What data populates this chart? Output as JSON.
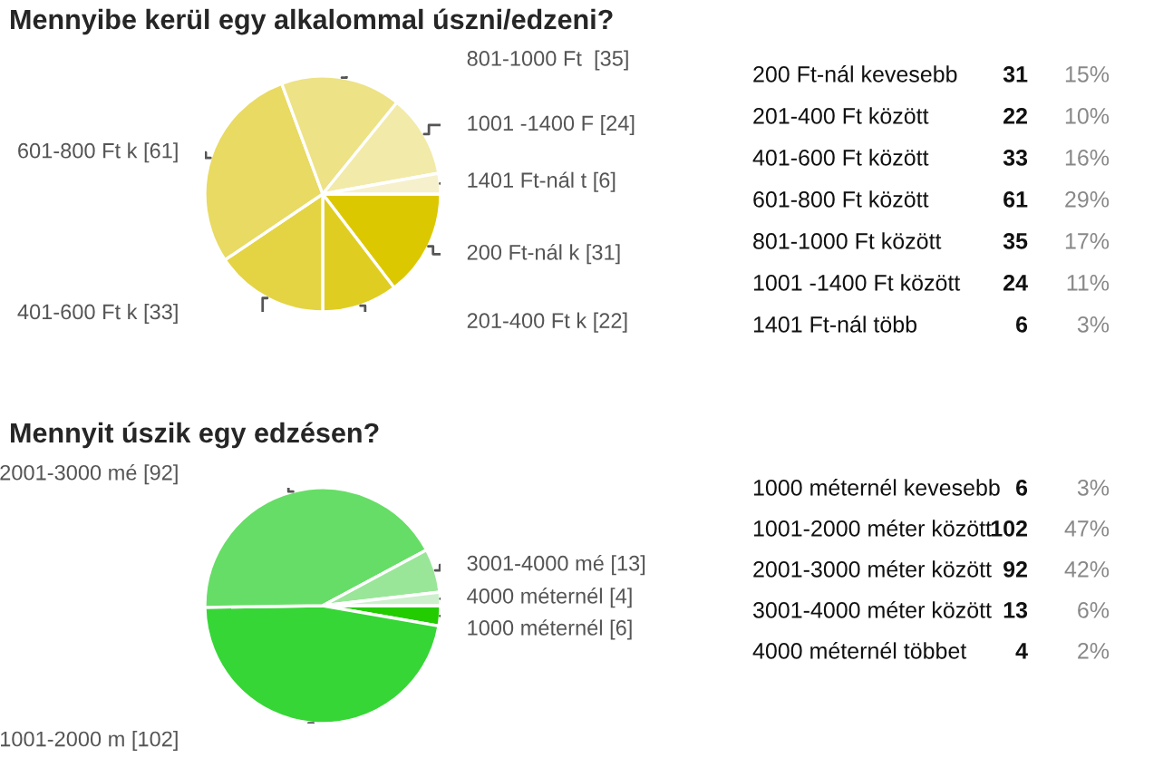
{
  "chart_data": [
    {
      "type": "pie",
      "title": "Mennyibe kerül egy alkalommal úszni/edzeni?",
      "categories": [
        "200 Ft-nál k",
        "201-400 Ft k",
        "401-600 Ft k",
        "601-800 Ft k",
        "801-1000 Ft ",
        "1001 -1400 F",
        "1401 Ft-nál t"
      ],
      "values": [
        31,
        22,
        33,
        61,
        35,
        24,
        6
      ],
      "colors": [
        "#dcc800",
        "#e0cd22",
        "#e4d444",
        "#e8da62",
        "#ede285",
        "#f2eaa8",
        "#f6f1cc"
      ],
      "value_labels": [
        "[31]",
        "[22]",
        "[33]",
        "[61]",
        "[35]",
        "[24]",
        "[6]"
      ]
    },
    {
      "type": "other",
      "categories": [
        "200 Ft-nál kevesebb",
        "201-400 Ft között",
        "401-600 Ft között",
        "601-800 Ft között",
        "801-1000 Ft között",
        "1001 -1400 Ft között",
        "1401 Ft-nál több"
      ],
      "series": [
        {
          "values": [
            31,
            22,
            33,
            61,
            35,
            24,
            6
          ]
        },
        {
          "values": [
            15,
            10,
            16,
            29,
            17,
            11,
            3
          ],
          "value_labels": [
            "15%",
            "10%",
            "16%",
            "29%",
            "17%",
            "11%",
            "3%"
          ]
        }
      ],
      "data_labels": true
    },
    {
      "type": "pie",
      "title": "Mennyit úszik egy edzésen?",
      "categories": [
        "1000 méternél",
        "1001-2000 m",
        "2001-3000 mé",
        "3001-4000 mé",
        "4000 méternél"
      ],
      "values": [
        6,
        102,
        92,
        13,
        4
      ],
      "colors": [
        "#22cc00",
        "#36d636",
        "#66dd66",
        "#99e699",
        "#ccf0cc"
      ],
      "value_labels": [
        "[6]",
        "[102]",
        "[92]",
        "[13]",
        "[4]"
      ]
    },
    {
      "type": "other",
      "categories": [
        "1000 méternél kevesebb",
        "1001-2000 méter között",
        "2001-3000 méter között",
        "3001-4000 méter között",
        "4000 méternél többet"
      ],
      "series": [
        {
          "values": [
            6,
            102,
            92,
            13,
            4
          ]
        },
        {
          "values": [
            3,
            47,
            42,
            6,
            2
          ],
          "value_labels": [
            "3%",
            "47%",
            "42%",
            "6%",
            "2%"
          ]
        }
      ],
      "data_labels": true
    }
  ]
}
